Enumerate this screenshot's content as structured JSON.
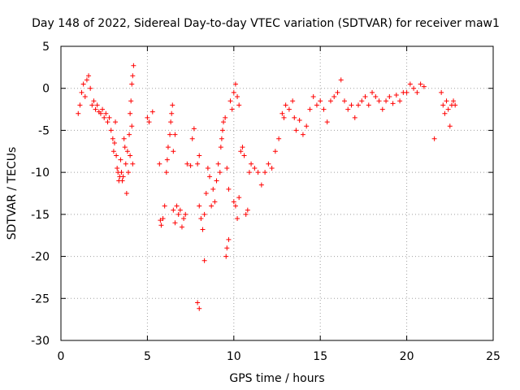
{
  "chart_data": {
    "type": "scatter",
    "title": "Day 148 of 2022, Sidereal Day-to-day VTEC variation (SDTVAR) for receiver maw1",
    "xlabel": "GPS time / hours",
    "ylabel": "SDTVAR / TECUs",
    "xlim": [
      0,
      25
    ],
    "ylim": [
      -30,
      5
    ],
    "xticks": [
      0,
      5,
      10,
      15,
      20,
      25
    ],
    "yticks": [
      -30,
      -25,
      -20,
      -15,
      -10,
      -5,
      0,
      5
    ],
    "grid": true,
    "marker": "+",
    "series": [
      {
        "name": "SDTVAR",
        "color": "#ff0000",
        "points": [
          [
            1.0,
            -3.0
          ],
          [
            1.1,
            -2.0
          ],
          [
            1.2,
            -0.5
          ],
          [
            1.3,
            0.5
          ],
          [
            1.4,
            -1.0
          ],
          [
            1.5,
            1.0
          ],
          [
            1.6,
            1.5
          ],
          [
            1.7,
            0.0
          ],
          [
            1.8,
            -2.0
          ],
          [
            1.9,
            -1.5
          ],
          [
            2.0,
            -2.5
          ],
          [
            2.1,
            -2.0
          ],
          [
            2.2,
            -2.8
          ],
          [
            2.3,
            -3.0
          ],
          [
            2.4,
            -2.5
          ],
          [
            2.5,
            -3.5
          ],
          [
            2.6,
            -3.0
          ],
          [
            2.7,
            -4.0
          ],
          [
            2.8,
            -3.5
          ],
          [
            2.9,
            -5.0
          ],
          [
            3.0,
            -6.0
          ],
          [
            3.05,
            -7.5
          ],
          [
            3.1,
            -6.5
          ],
          [
            3.15,
            -4.0
          ],
          [
            3.2,
            -8.0
          ],
          [
            3.25,
            -9.5
          ],
          [
            3.3,
            -10.0
          ],
          [
            3.35,
            -11.0
          ],
          [
            3.4,
            -10.5
          ],
          [
            3.45,
            -8.5
          ],
          [
            3.5,
            -10.0
          ],
          [
            3.55,
            -11.0
          ],
          [
            3.6,
            -10.5
          ],
          [
            3.65,
            -6.0
          ],
          [
            3.7,
            -7.0
          ],
          [
            3.75,
            -9.0
          ],
          [
            3.8,
            -12.5
          ],
          [
            3.85,
            -7.5
          ],
          [
            3.9,
            -10.0
          ],
          [
            3.95,
            -5.5
          ],
          [
            4.0,
            -3.0
          ],
          [
            4.05,
            -1.5
          ],
          [
            4.1,
            0.5
          ],
          [
            4.15,
            1.5
          ],
          [
            4.2,
            2.7
          ],
          [
            4.15,
            -9.0
          ],
          [
            4.1,
            -4.5
          ],
          [
            4.0,
            -8.0
          ],
          [
            5.0,
            -3.5
          ],
          [
            5.1,
            -4.0
          ],
          [
            5.3,
            -2.8
          ],
          [
            5.7,
            -9.0
          ],
          [
            5.75,
            -15.7
          ],
          [
            5.8,
            -16.3
          ],
          [
            5.9,
            -15.5
          ],
          [
            6.0,
            -14.0
          ],
          [
            6.1,
            -10.0
          ],
          [
            6.15,
            -8.5
          ],
          [
            6.2,
            -7.0
          ],
          [
            6.3,
            -5.5
          ],
          [
            6.35,
            -4.0
          ],
          [
            6.4,
            -3.0
          ],
          [
            6.45,
            -2.0
          ],
          [
            6.5,
            -7.5
          ],
          [
            6.6,
            -5.5
          ],
          [
            6.5,
            -14.5
          ],
          [
            6.6,
            -16.0
          ],
          [
            6.7,
            -14.0
          ],
          [
            6.8,
            -15.0
          ],
          [
            6.9,
            -14.5
          ],
          [
            7.0,
            -16.5
          ],
          [
            7.1,
            -15.5
          ],
          [
            7.2,
            -15.0
          ],
          [
            7.3,
            -9.0
          ],
          [
            7.5,
            -9.2
          ],
          [
            7.6,
            -6.0
          ],
          [
            7.7,
            -4.8
          ],
          [
            7.9,
            -9.0
          ],
          [
            8.0,
            -8.0
          ],
          [
            7.9,
            -25.5
          ],
          [
            8.0,
            -26.2
          ],
          [
            8.0,
            -14.0
          ],
          [
            8.1,
            -15.5
          ],
          [
            8.2,
            -16.8
          ],
          [
            8.3,
            -20.5
          ],
          [
            8.3,
            -15.0
          ],
          [
            8.4,
            -12.5
          ],
          [
            8.5,
            -9.5
          ],
          [
            8.6,
            -10.5
          ],
          [
            8.7,
            -14.0
          ],
          [
            8.8,
            -12.0
          ],
          [
            8.9,
            -13.5
          ],
          [
            9.0,
            -11.0
          ],
          [
            9.1,
            -9.0
          ],
          [
            9.2,
            -10.0
          ],
          [
            9.25,
            -7.0
          ],
          [
            9.3,
            -6.0
          ],
          [
            9.35,
            -5.0
          ],
          [
            9.4,
            -4.0
          ],
          [
            9.5,
            -3.5
          ],
          [
            9.6,
            -19.0
          ],
          [
            9.7,
            -18.0
          ],
          [
            9.55,
            -20.0
          ],
          [
            9.6,
            -9.5
          ],
          [
            9.7,
            -12.0
          ],
          [
            9.8,
            -1.5
          ],
          [
            9.9,
            -2.5
          ],
          [
            10.0,
            -0.5
          ],
          [
            10.1,
            0.5
          ],
          [
            10.2,
            -1.0
          ],
          [
            10.3,
            -2.0
          ],
          [
            10.0,
            -13.5
          ],
          [
            10.1,
            -14.0
          ],
          [
            10.2,
            -15.5
          ],
          [
            10.3,
            -13.0
          ],
          [
            10.4,
            -7.5
          ],
          [
            10.5,
            -7.0
          ],
          [
            10.6,
            -8.0
          ],
          [
            10.7,
            -15.0
          ],
          [
            10.8,
            -14.5
          ],
          [
            10.9,
            -10.0
          ],
          [
            11.0,
            -9.0
          ],
          [
            11.2,
            -9.5
          ],
          [
            11.4,
            -10.0
          ],
          [
            11.6,
            -11.5
          ],
          [
            11.8,
            -10.0
          ],
          [
            12.0,
            -9.0
          ],
          [
            12.2,
            -9.5
          ],
          [
            12.4,
            -7.5
          ],
          [
            12.6,
            -6.0
          ],
          [
            12.8,
            -3.0
          ],
          [
            12.9,
            -3.5
          ],
          [
            13.0,
            -2.0
          ],
          [
            13.2,
            -2.5
          ],
          [
            13.4,
            -1.5
          ],
          [
            13.5,
            -3.5
          ],
          [
            13.6,
            -5.0
          ],
          [
            13.8,
            -3.8
          ],
          [
            14.0,
            -5.5
          ],
          [
            14.2,
            -4.5
          ],
          [
            14.4,
            -2.5
          ],
          [
            14.6,
            -1.0
          ],
          [
            14.8,
            -2.0
          ],
          [
            15.0,
            -1.5
          ],
          [
            15.2,
            -2.5
          ],
          [
            15.4,
            -4.0
          ],
          [
            15.6,
            -1.5
          ],
          [
            15.8,
            -1.0
          ],
          [
            16.0,
            -0.5
          ],
          [
            16.2,
            1.0
          ],
          [
            16.4,
            -1.5
          ],
          [
            16.6,
            -2.5
          ],
          [
            16.8,
            -2.0
          ],
          [
            17.0,
            -3.5
          ],
          [
            17.2,
            -2.0
          ],
          [
            17.4,
            -1.5
          ],
          [
            17.6,
            -1.0
          ],
          [
            17.8,
            -2.0
          ],
          [
            18.0,
            -0.5
          ],
          [
            18.2,
            -1.0
          ],
          [
            18.4,
            -1.5
          ],
          [
            18.6,
            -2.5
          ],
          [
            18.8,
            -1.5
          ],
          [
            19.0,
            -1.0
          ],
          [
            19.2,
            -1.8
          ],
          [
            19.4,
            -0.8
          ],
          [
            19.6,
            -1.5
          ],
          [
            19.8,
            -0.5
          ],
          [
            20.0,
            -0.5
          ],
          [
            20.2,
            0.5
          ],
          [
            20.4,
            0.0
          ],
          [
            20.6,
            -0.5
          ],
          [
            20.8,
            0.5
          ],
          [
            21.0,
            0.2
          ],
          [
            21.6,
            -6.0
          ],
          [
            22.0,
            -0.5
          ],
          [
            22.1,
            -2.0
          ],
          [
            22.2,
            -3.0
          ],
          [
            22.3,
            -1.5
          ],
          [
            22.4,
            -2.5
          ],
          [
            22.5,
            -4.5
          ],
          [
            22.6,
            -2.0
          ],
          [
            22.7,
            -1.5
          ],
          [
            22.8,
            -2.0
          ]
        ]
      }
    ]
  }
}
